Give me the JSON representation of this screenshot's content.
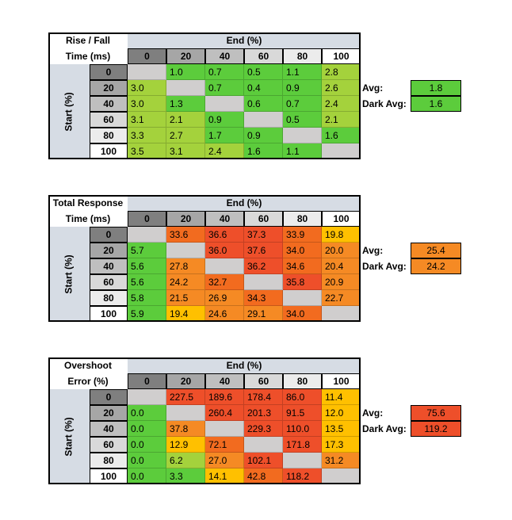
{
  "headers": {
    "end": "End (%)",
    "start": "Start (%)"
  },
  "levels": [
    "0",
    "20",
    "40",
    "60",
    "80",
    "100"
  ],
  "colors": {
    "header_bg": "#d6dce4",
    "green": "#5ccc3c",
    "green_light": "#a4d23c",
    "yellow": "#ffc000",
    "orange": "#f58a24",
    "orange_red": "#f26b1f",
    "red": "#ee4f2a",
    "empty": "#d0cece"
  },
  "tables": [
    {
      "title": [
        "Rise / Fall",
        "Time (ms)"
      ],
      "avg_label": "Avg:",
      "avg_value": "1.8",
      "dark_avg_label": "Dark Avg:",
      "dark_avg_value": "1.6",
      "rows": [
        [
          "",
          "1.0",
          "0.7",
          "0.5",
          "1.1",
          "2.8"
        ],
        [
          "3.0",
          "",
          "0.7",
          "0.4",
          "0.9",
          "2.6"
        ],
        [
          "3.0",
          "1.3",
          "",
          "0.6",
          "0.7",
          "2.4"
        ],
        [
          "3.1",
          "2.1",
          "0.9",
          "",
          "0.5",
          "2.1"
        ],
        [
          "3.3",
          "2.7",
          "1.7",
          "0.9",
          "",
          "1.6"
        ],
        [
          "3.5",
          "3.1",
          "2.4",
          "1.6",
          "1.1",
          ""
        ]
      ]
    },
    {
      "title": [
        "Total Response",
        "Time (ms)"
      ],
      "avg_label": "Avg:",
      "avg_value": "25.4",
      "dark_avg_label": "Dark Avg:",
      "dark_avg_value": "24.2",
      "rows": [
        [
          "",
          "33.6",
          "36.6",
          "37.3",
          "33.9",
          "19.8"
        ],
        [
          "5.7",
          "",
          "36.0",
          "37.6",
          "34.0",
          "20.0"
        ],
        [
          "5.6",
          "27.8",
          "",
          "36.2",
          "34.6",
          "20.4"
        ],
        [
          "5.6",
          "24.2",
          "32.7",
          "",
          "35.8",
          "20.9"
        ],
        [
          "5.8",
          "21.5",
          "26.9",
          "34.3",
          "",
          "22.7"
        ],
        [
          "5.9",
          "19.4",
          "24.6",
          "29.1",
          "34.0",
          ""
        ]
      ]
    },
    {
      "title": [
        "Overshoot",
        "Error (%)"
      ],
      "avg_label": "Avg:",
      "avg_value": "75.6",
      "dark_avg_label": "Dark Avg:",
      "dark_avg_value": "119.2",
      "rows": [
        [
          "",
          "227.5",
          "189.6",
          "178.4",
          "86.0",
          "11.4"
        ],
        [
          "0.0",
          "",
          "260.4",
          "201.3",
          "91.5",
          "12.0"
        ],
        [
          "0.0",
          "37.8",
          "",
          "229.3",
          "110.0",
          "13.5"
        ],
        [
          "0.0",
          "12.9",
          "72.1",
          "",
          "171.8",
          "17.3"
        ],
        [
          "0.0",
          "6.2",
          "27.0",
          "102.1",
          "",
          "31.2"
        ],
        [
          "0.0",
          "3.3",
          "14.1",
          "42.8",
          "118.2",
          ""
        ]
      ]
    }
  ],
  "chart_data": [
    {
      "type": "heatmap",
      "title": "Rise / Fall Time (ms)",
      "xlabel": "End (%)",
      "ylabel": "Start (%)",
      "x": [
        0,
        20,
        40,
        60,
        80,
        100
      ],
      "y": [
        0,
        20,
        40,
        60,
        80,
        100
      ],
      "values": [
        [
          null,
          1.0,
          0.7,
          0.5,
          1.1,
          2.8
        ],
        [
          3.0,
          null,
          0.7,
          0.4,
          0.9,
          2.6
        ],
        [
          3.0,
          1.3,
          null,
          0.6,
          0.7,
          2.4
        ],
        [
          3.1,
          2.1,
          0.9,
          null,
          0.5,
          2.1
        ],
        [
          3.3,
          2.7,
          1.7,
          0.9,
          null,
          1.6
        ],
        [
          3.5,
          3.1,
          2.4,
          1.6,
          1.1,
          null
        ]
      ],
      "avg": 1.8,
      "dark_avg": 1.6
    },
    {
      "type": "heatmap",
      "title": "Total Response Time (ms)",
      "xlabel": "End (%)",
      "ylabel": "Start (%)",
      "x": [
        0,
        20,
        40,
        60,
        80,
        100
      ],
      "y": [
        0,
        20,
        40,
        60,
        80,
        100
      ],
      "values": [
        [
          null,
          33.6,
          36.6,
          37.3,
          33.9,
          19.8
        ],
        [
          5.7,
          null,
          36.0,
          37.6,
          34.0,
          20.0
        ],
        [
          5.6,
          27.8,
          null,
          36.2,
          34.6,
          20.4
        ],
        [
          5.6,
          24.2,
          32.7,
          null,
          35.8,
          20.9
        ],
        [
          5.8,
          21.5,
          26.9,
          34.3,
          null,
          22.7
        ],
        [
          5.9,
          19.4,
          24.6,
          29.1,
          34.0,
          null
        ]
      ],
      "avg": 25.4,
      "dark_avg": 24.2
    },
    {
      "type": "heatmap",
      "title": "Overshoot Error (%)",
      "xlabel": "End (%)",
      "ylabel": "Start (%)",
      "x": [
        0,
        20,
        40,
        60,
        80,
        100
      ],
      "y": [
        0,
        20,
        40,
        60,
        80,
        100
      ],
      "values": [
        [
          null,
          227.5,
          189.6,
          178.4,
          86.0,
          11.4
        ],
        [
          0.0,
          null,
          260.4,
          201.3,
          91.5,
          12.0
        ],
        [
          0.0,
          37.8,
          null,
          229.3,
          110.0,
          13.5
        ],
        [
          0.0,
          12.9,
          72.1,
          null,
          171.8,
          17.3
        ],
        [
          0.0,
          6.2,
          27.0,
          102.1,
          null,
          31.2
        ],
        [
          0.0,
          3.3,
          14.1,
          42.8,
          118.2,
          null
        ]
      ],
      "avg": 75.6,
      "dark_avg": 119.2
    }
  ]
}
